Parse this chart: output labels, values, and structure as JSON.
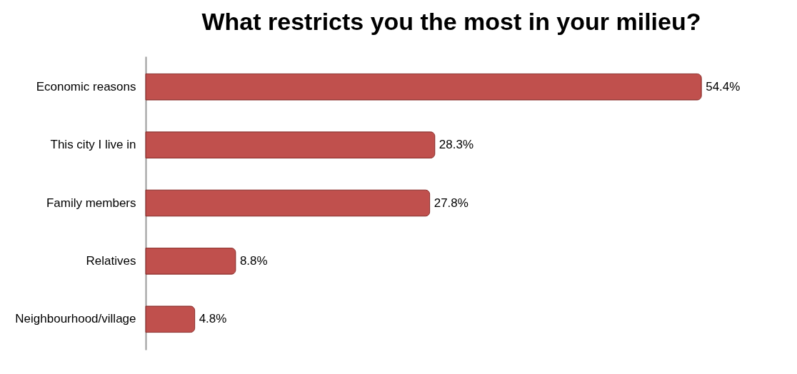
{
  "chart_data": {
    "type": "bar",
    "orientation": "horizontal",
    "title": "What restricts you the most in your milieu?",
    "categories": [
      "Economic reasons",
      "This city I live in",
      "Family members",
      "Relatives",
      "Neighbourhood/village"
    ],
    "values": [
      54.4,
      28.3,
      27.8,
      8.8,
      4.8
    ],
    "value_labels": [
      "54.4%",
      "28.3%",
      "27.8%",
      "8.8%",
      "4.8%"
    ],
    "color": "#c0504d",
    "grid": false
  }
}
